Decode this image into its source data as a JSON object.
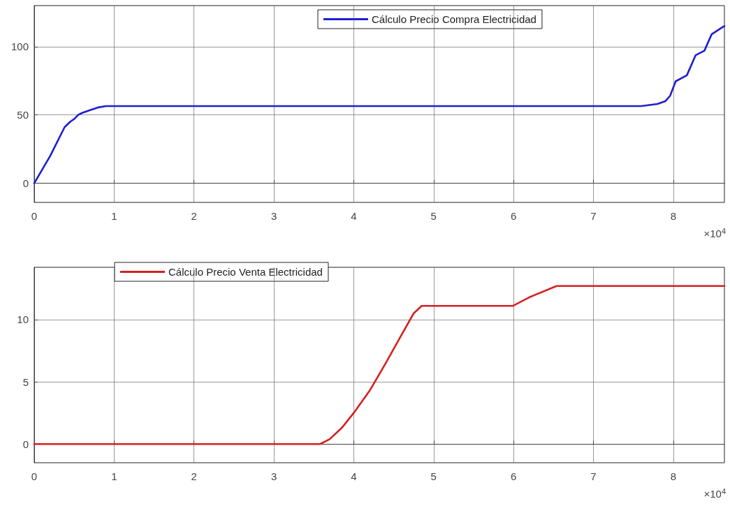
{
  "chart_data": [
    {
      "type": "line",
      "legend": "top",
      "grid": true,
      "marker": "none",
      "line_style": "solid",
      "xlim": [
        0,
        8.64
      ],
      "xticks": [
        0,
        1,
        2,
        3,
        4,
        5,
        6,
        7,
        8
      ],
      "ylim": [
        -14,
        130
      ],
      "yticks": [
        0,
        50,
        100
      ],
      "annotations": [
        "×10$^{4}$"
      ],
      "series": [
        {
          "name": "Cálculo Precio Compra Electricidad",
          "color": "#1f1fd0",
          "x": [
            0,
            0.2,
            0.38,
            0.45,
            0.5,
            0.55,
            0.6,
            0.7,
            0.8,
            0.9,
            7.6,
            7.8,
            7.9,
            7.96,
            8.03,
            8.17,
            8.28,
            8.39,
            8.48,
            8.61,
            8.64
          ],
          "values": [
            0,
            20,
            41,
            45,
            47,
            50,
            51.5,
            53.5,
            55.5,
            56.5,
            56.5,
            58,
            60,
            64,
            74.6,
            79,
            93.7,
            97,
            109,
            114,
            115
          ]
        }
      ]
    },
    {
      "type": "line",
      "legend": "top left",
      "grid": true,
      "marker": "none",
      "line_style": "solid",
      "xlim": [
        0,
        8.64
      ],
      "xticks": [
        0,
        1,
        2,
        3,
        4,
        5,
        6,
        7,
        8
      ],
      "ylim": [
        -1.5,
        14.2
      ],
      "yticks": [
        0,
        5,
        10
      ],
      "annotations": [
        "×10$^{4}$"
      ],
      "series": [
        {
          "name": "Cálculo Precio Venta Electricidad",
          "color": "#d42020",
          "x": [
            0,
            3.58,
            3.7,
            3.85,
            4.0,
            4.2,
            4.4,
            4.6,
            4.75,
            4.85,
            5.99,
            6.2,
            6.54,
            8.64
          ],
          "values": [
            0,
            0,
            0.4,
            1.3,
            2.5,
            4.3,
            6.5,
            8.8,
            10.5,
            11.1,
            11.1,
            11.8,
            12.7,
            12.7
          ]
        }
      ]
    }
  ]
}
